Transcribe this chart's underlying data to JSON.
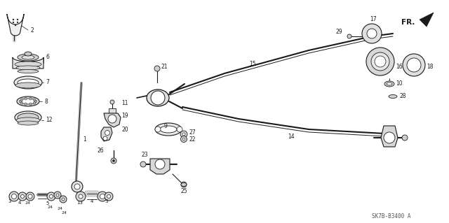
{
  "bg_color": "#ffffff",
  "line_color": "#1a1a1a",
  "diagram_code": "SK7B-B3400 A",
  "figsize": [
    6.4,
    3.19
  ],
  "dpi": 100
}
